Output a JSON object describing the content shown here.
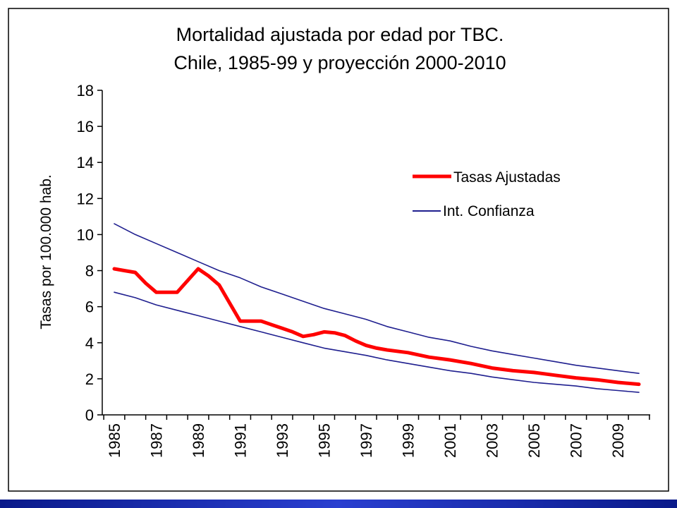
{
  "chart_data": {
    "type": "line",
    "title": "Mortalidad ajustada por edad por TBC.",
    "subtitle": "Chile, 1985-99 y proyección 2000-2010",
    "xlabel": "",
    "ylabel": "Tasas por 100.000 hab.",
    "ylim": [
      0,
      18
    ],
    "yticks": [
      0,
      2,
      4,
      6,
      8,
      10,
      12,
      14,
      16,
      18
    ],
    "xlim": [
      1985,
      2010
    ],
    "xticks": [
      "1985",
      "1987",
      "1989",
      "1991",
      "1993",
      "1995",
      "1997",
      "1999",
      "2001",
      "2003",
      "2005",
      "2007",
      "2009"
    ],
    "grid": false,
    "legend_position": "upper-right",
    "series": [
      {
        "name": "Tasas Ajustadas",
        "color": "#ff0000",
        "x": [
          1985,
          1985.5,
          1986,
          1986.5,
          1987,
          1988,
          1989,
          1989.5,
          1990,
          1990.5,
          1991,
          1992,
          1992.5,
          1993,
          1993.5,
          1994,
          1994.5,
          1995,
          1995.5,
          1996,
          1996.5,
          1997,
          1997.5,
          1998,
          1999,
          2000,
          2001,
          2002,
          2003,
          2004,
          2005,
          2006,
          2007,
          2008,
          2009,
          2010
        ],
        "values": [
          8.1,
          8.0,
          7.9,
          7.3,
          6.8,
          6.8,
          8.1,
          7.7,
          7.2,
          6.2,
          5.2,
          5.2,
          5.0,
          4.8,
          4.6,
          4.35,
          4.45,
          4.6,
          4.55,
          4.4,
          4.1,
          3.85,
          3.7,
          3.6,
          3.45,
          3.2,
          3.05,
          2.85,
          2.6,
          2.45,
          2.35,
          2.2,
          2.05,
          1.95,
          1.8,
          1.7
        ]
      },
      {
        "name": "Int. Confianza",
        "color": "#1f1f8f",
        "x": [
          1985,
          1986,
          1987,
          1988,
          1989,
          1990,
          1991,
          1992,
          1993,
          1994,
          1995,
          1996,
          1997,
          1998,
          1999,
          2000,
          2001,
          2002,
          2003,
          2004,
          2005,
          2006,
          2007,
          2008,
          2009,
          2010
        ],
        "values": [
          10.6,
          10.0,
          9.5,
          9.0,
          8.5,
          8.0,
          7.6,
          7.1,
          6.7,
          6.3,
          5.9,
          5.6,
          5.3,
          4.9,
          4.6,
          4.3,
          4.1,
          3.8,
          3.55,
          3.35,
          3.15,
          2.95,
          2.75,
          2.6,
          2.45,
          2.3
        ]
      },
      {
        "name": "Int. Confianza",
        "color": "#1f1f8f",
        "x": [
          1985,
          1986,
          1987,
          1988,
          1989,
          1990,
          1991,
          1992,
          1993,
          1994,
          1995,
          1996,
          1997,
          1998,
          1999,
          2000,
          2001,
          2002,
          2003,
          2004,
          2005,
          2006,
          2007,
          2008,
          2009,
          2010
        ],
        "values": [
          6.8,
          6.5,
          6.1,
          5.8,
          5.5,
          5.2,
          4.9,
          4.6,
          4.3,
          4.0,
          3.7,
          3.5,
          3.3,
          3.05,
          2.85,
          2.65,
          2.45,
          2.3,
          2.1,
          1.95,
          1.8,
          1.7,
          1.6,
          1.45,
          1.35,
          1.25
        ]
      }
    ]
  }
}
